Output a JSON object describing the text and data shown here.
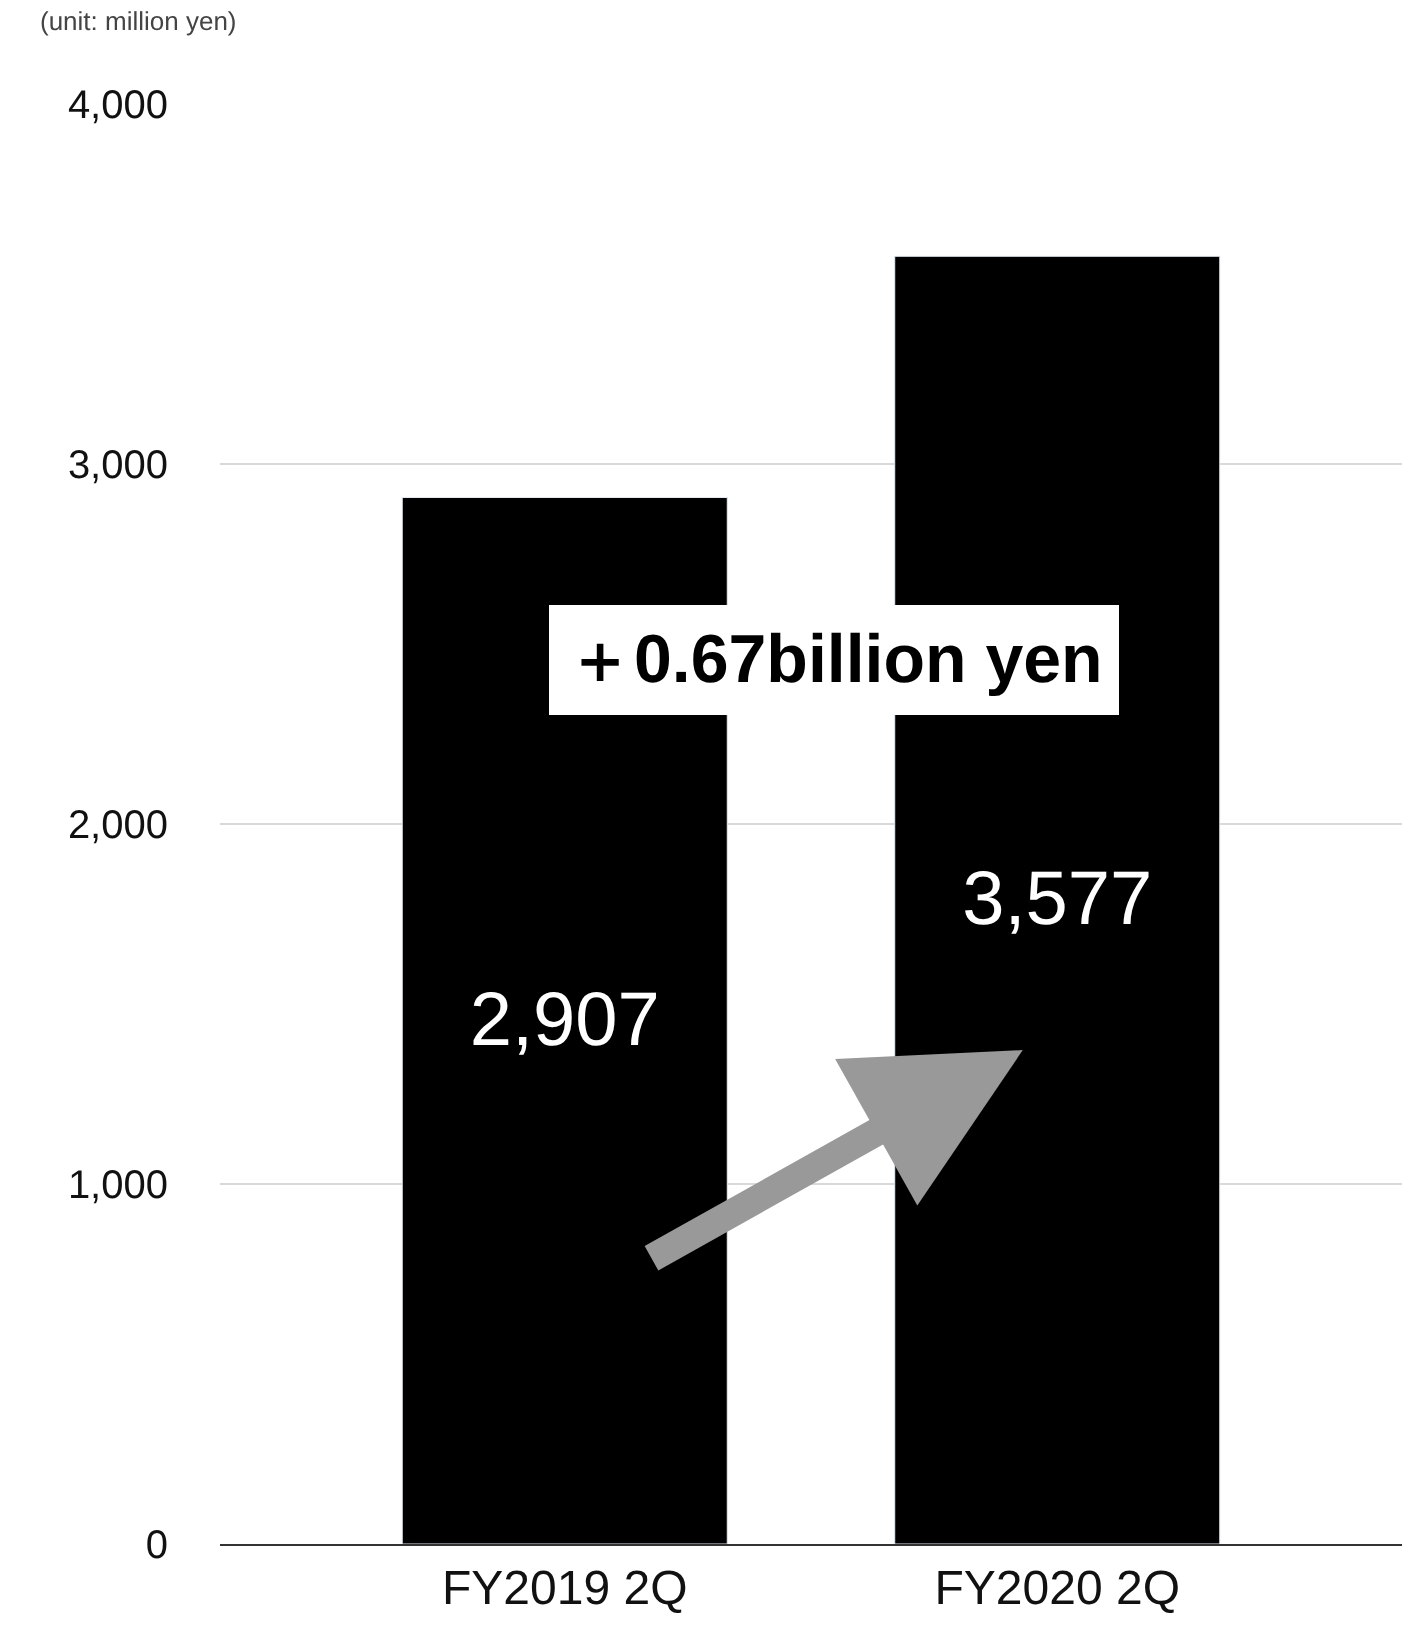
{
  "chart_data": {
    "type": "bar",
    "categories": [
      "FY2019 2Q",
      "FY2020 2Q"
    ],
    "values": [
      2907,
      3577
    ],
    "color": "#000000",
    "ylim": [
      0,
      4000
    ],
    "yticks": [
      {
        "value": 0,
        "label": "0"
      },
      {
        "value": 1000,
        "label": "1,000"
      },
      {
        "value": 2000,
        "label": "2,000"
      },
      {
        "value": 3000,
        "label": "3,000"
      },
      {
        "value": 4000,
        "label": "4,000"
      }
    ],
    "grid": "y",
    "data_labels": true,
    "value_labels": [
      "2,907",
      "3,577"
    ],
    "annotations": [
      "(unit: million yen)",
      "＋0.67billion yen"
    ]
  }
}
